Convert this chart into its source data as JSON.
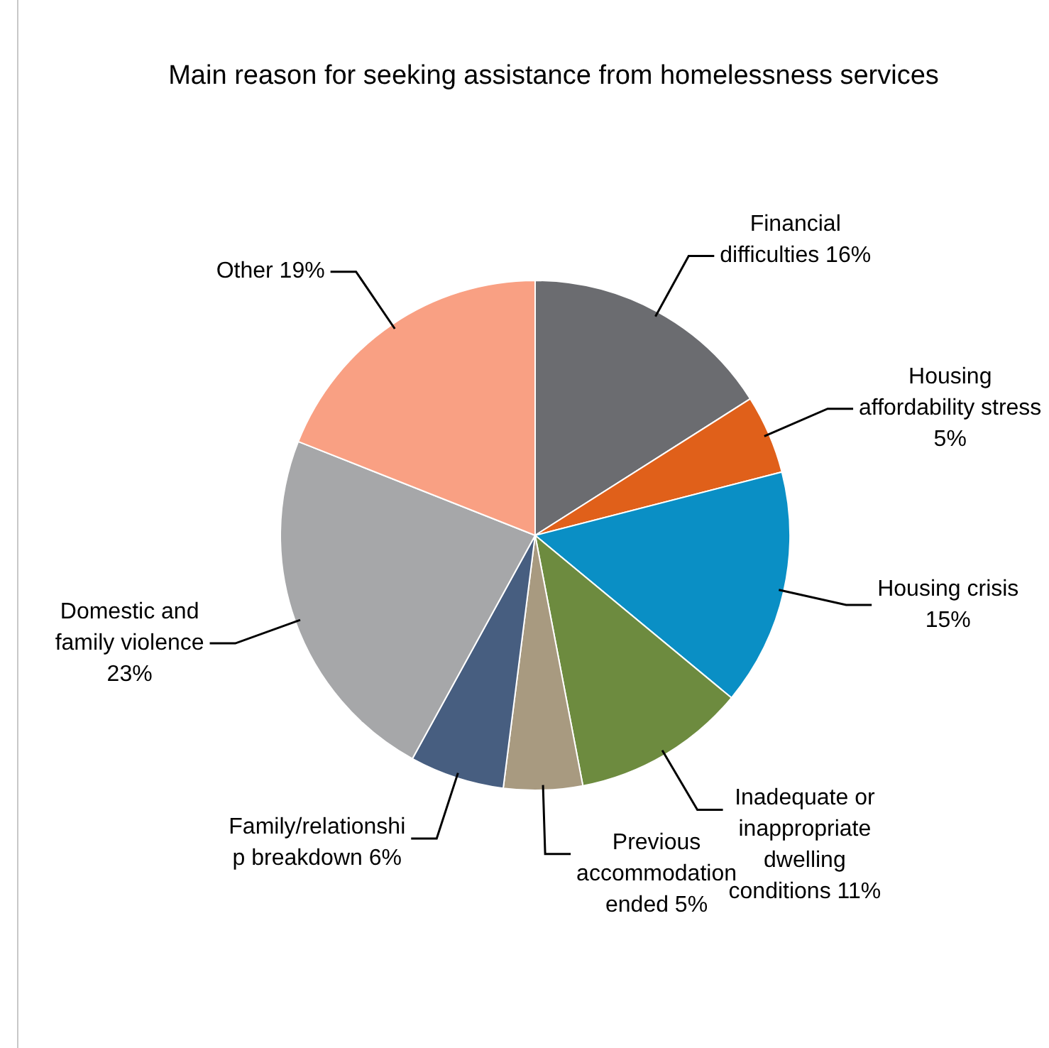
{
  "chart_data": {
    "type": "pie",
    "title": "Main reason for seeking assistance from homelessness services",
    "categories": [
      "Financial difficulties",
      "Housing affordability stress",
      "Housing crisis",
      "Inadequate or inappropriate dwelling conditions",
      "Previous accommodation ended",
      "Family/relationship breakdown",
      "Domestic and family violence",
      "Other"
    ],
    "values": [
      16,
      5,
      15,
      11,
      5,
      6,
      23,
      19
    ],
    "value_labels": [
      "16%",
      "5%",
      "15%",
      "11%",
      "5%",
      "6%",
      "23%",
      "19%"
    ],
    "colors": [
      "#6b6c70",
      "#e0601a",
      "#0a8fc5",
      "#6d8b3f",
      "#a89a80",
      "#475e80",
      "#a6a7a9",
      "#f9a083"
    ]
  }
}
